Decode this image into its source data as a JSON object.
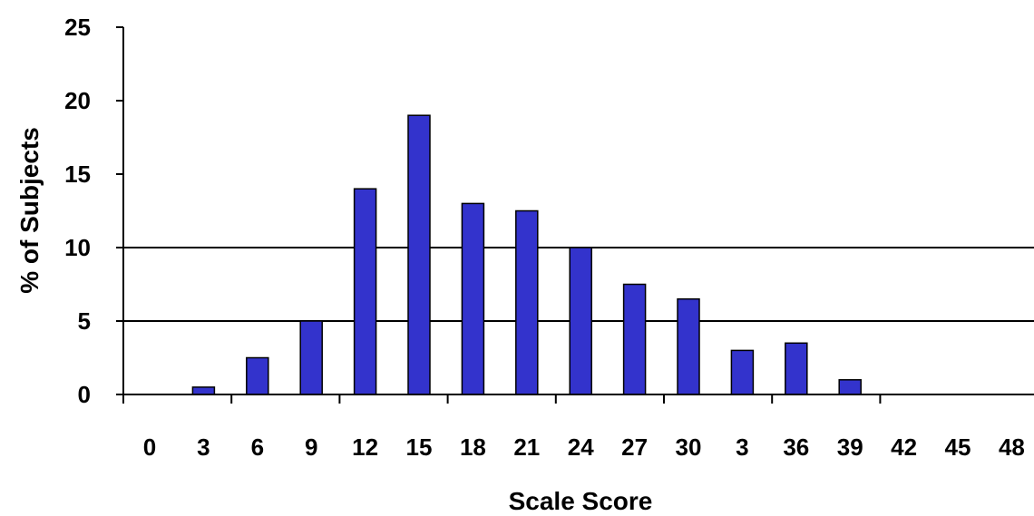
{
  "chart_data": {
    "type": "bar",
    "title": "",
    "xlabel": "Scale Score",
    "ylabel": "% of Subjects",
    "categories": [
      "0",
      "3",
      "6",
      "9",
      "12",
      "15",
      "18",
      "21",
      "24",
      "27",
      "30",
      "3",
      "36",
      "39",
      "42",
      "45",
      "48"
    ],
    "values": [
      0,
      0.5,
      2.5,
      5,
      14,
      19,
      13,
      12.5,
      10,
      7.5,
      6.5,
      3,
      3.5,
      1,
      0,
      0,
      0
    ],
    "y_ticks": [
      "0",
      "5",
      "10",
      "15",
      "20",
      "25"
    ],
    "ylim": [
      0,
      25
    ],
    "grid": "horizontal at 5 and 10",
    "legend": "none",
    "colors": {
      "bar_fill": "#3333cc",
      "bar_stroke": "#000000",
      "axis": "#000000",
      "gridline": "#000000"
    }
  }
}
